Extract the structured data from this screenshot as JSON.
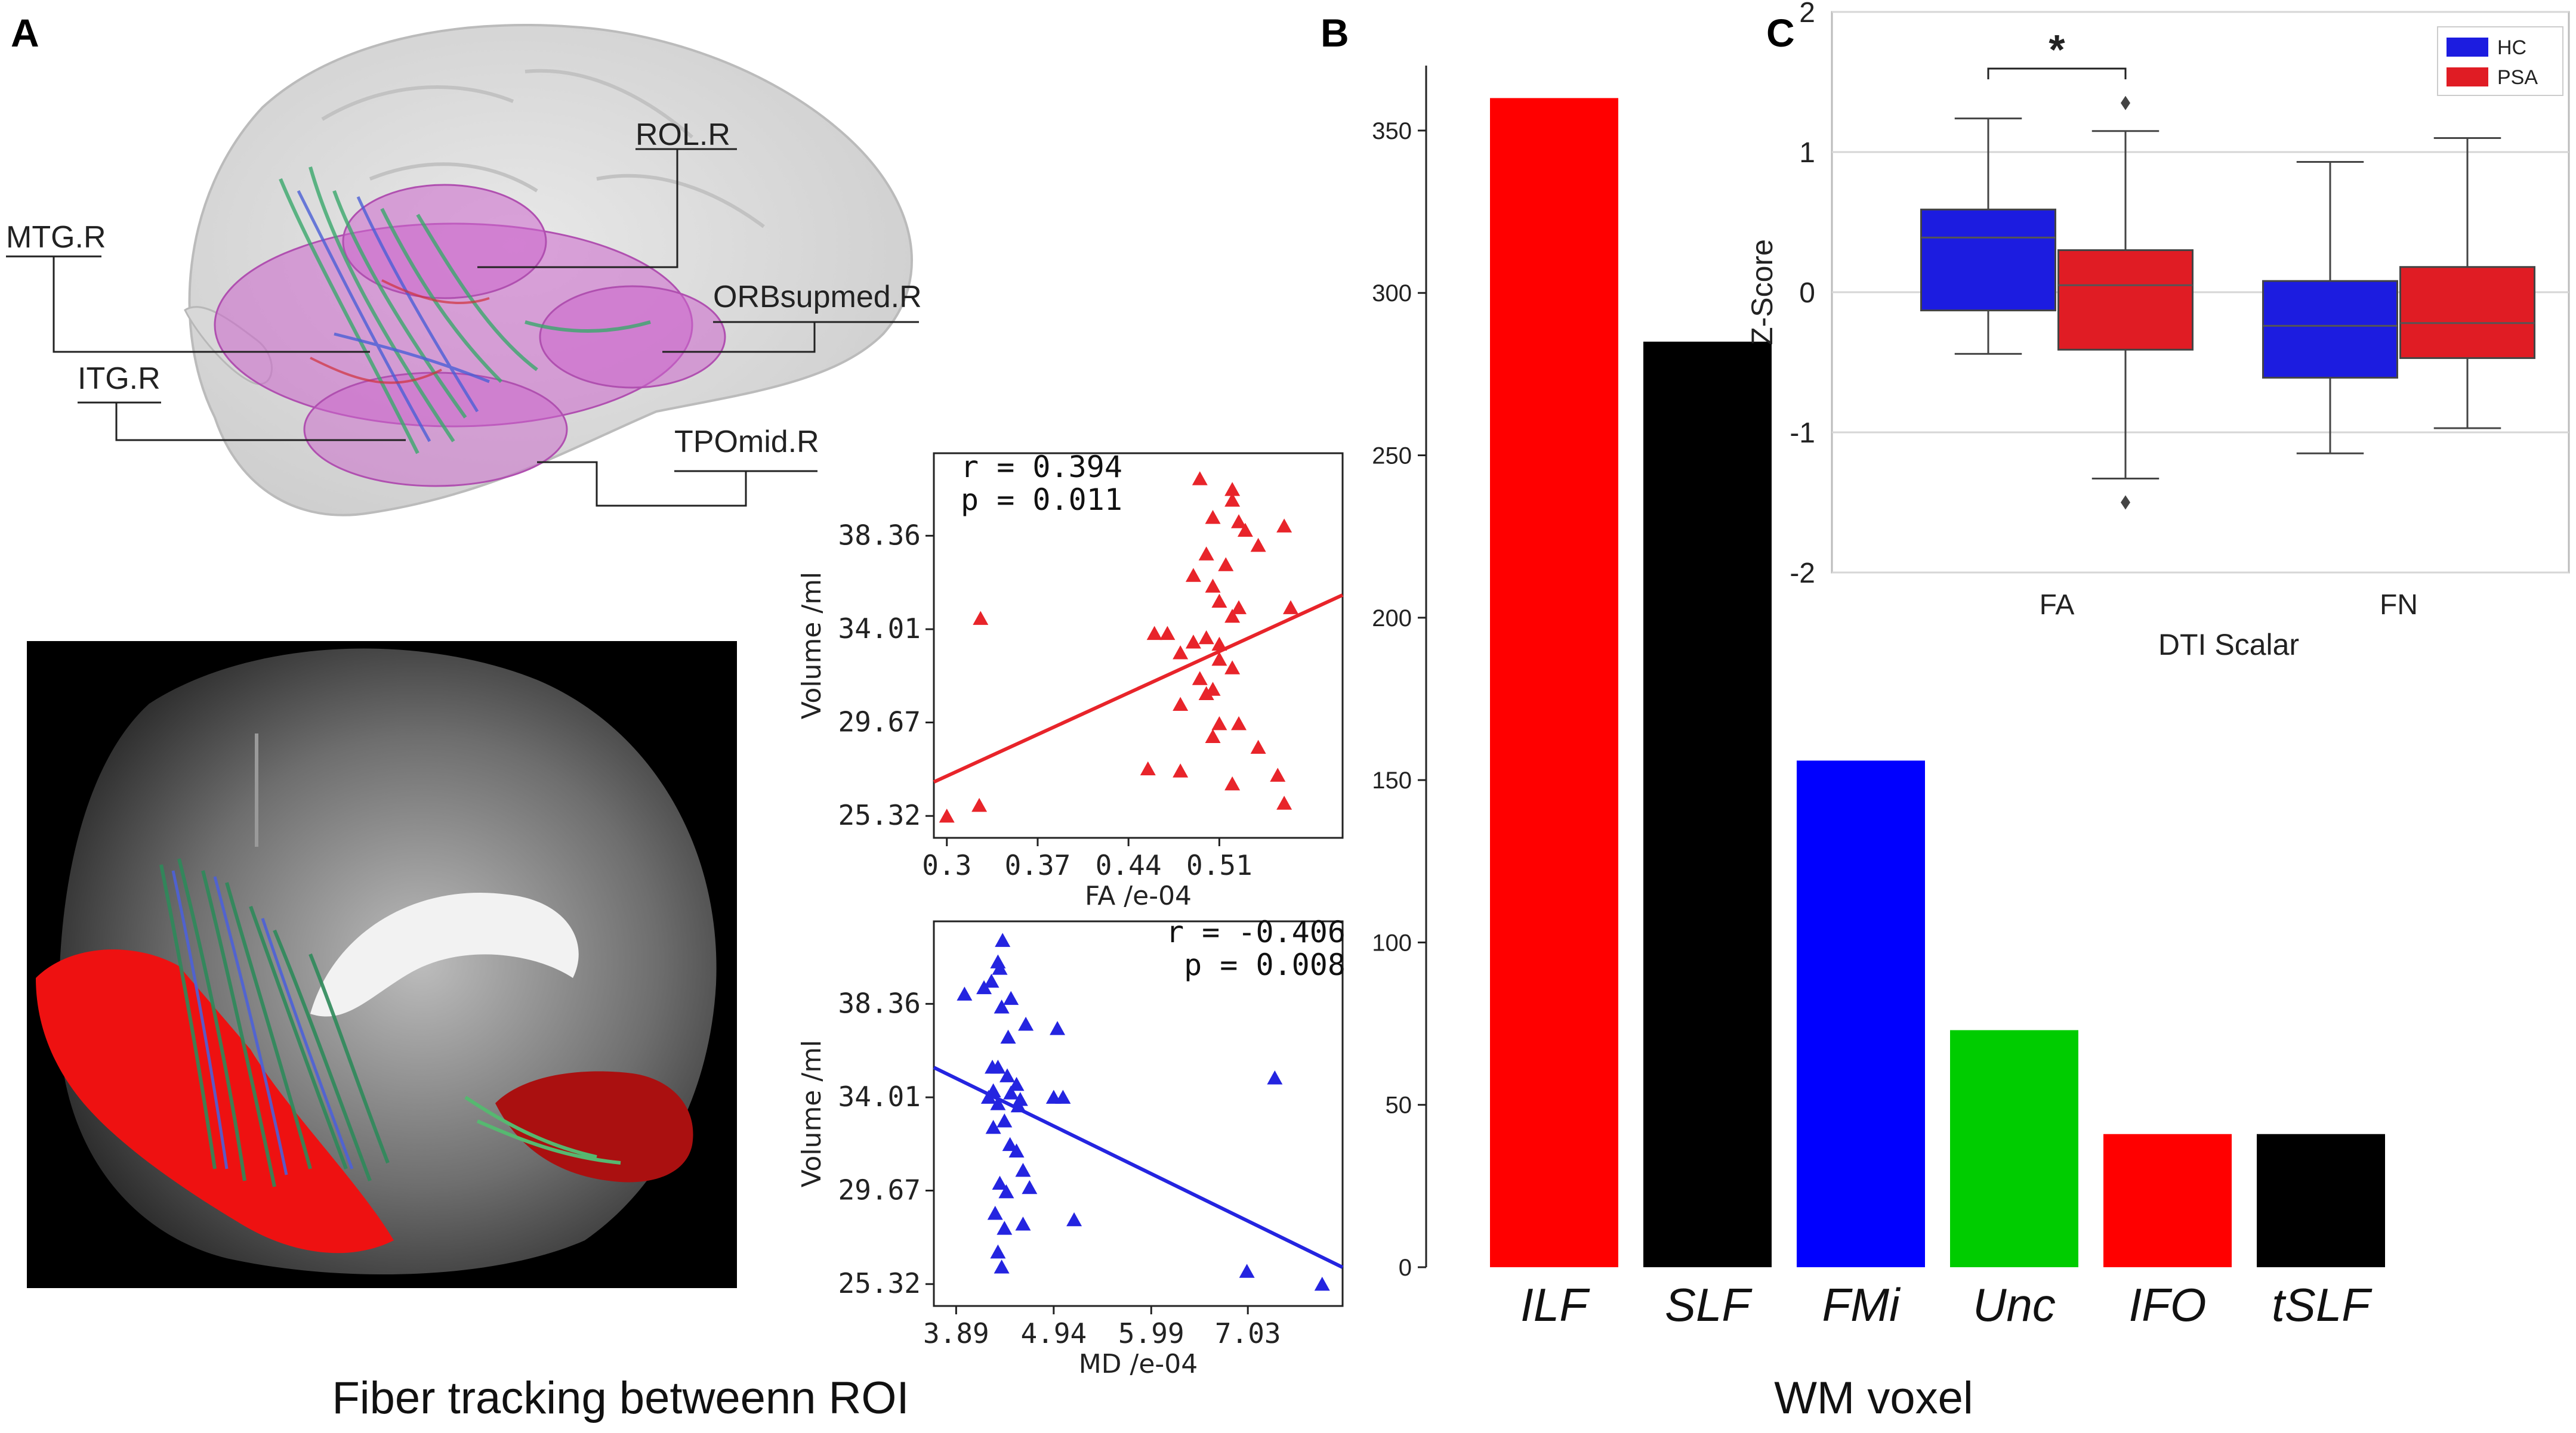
{
  "panels": {
    "a_letter": "A",
    "b_letter": "B",
    "c_letter": "C"
  },
  "panel_a": {
    "caption": "Fiber tracking betweenn ROI",
    "roi_labels": [
      "ROL.R",
      "MTG.R",
      "ORBsupmed.R",
      "ITG.R",
      "TPOmid.R"
    ]
  },
  "panel_b": {
    "caption": "WM voxel"
  },
  "colors": {
    "red": "#ff0000",
    "black": "#000000",
    "blue": "#0000ff",
    "green": "#00cc00",
    "scatter_red": "#e8242a",
    "scatter_blue": "#2424e0",
    "box_blue": "#1c1ce0",
    "box_red": "#e01c24"
  },
  "chart_data": [
    {
      "id": "scatter-fa",
      "type": "scatter",
      "xlabel": "FA /e-04",
      "ylabel": "Volume /ml",
      "xticks": [
        "0.3",
        "0.37",
        "0.44",
        "0.51"
      ],
      "yticks": [
        "25.32",
        "29.67",
        "34.01",
        "38.36"
      ],
      "xlim": [
        0.29,
        0.605
      ],
      "ylim": [
        24.3,
        42.2
      ],
      "stats": {
        "r": "r = 0.394",
        "p": "p = 0.011"
      },
      "fit": {
        "x": [
          0.29,
          0.605
        ],
        "y": [
          26.9,
          35.6
        ]
      },
      "color": "#e8242a",
      "points": [
        [
          0.3,
          25.3
        ],
        [
          0.325,
          25.8
        ],
        [
          0.326,
          34.5
        ],
        [
          0.495,
          41.0
        ],
        [
          0.52,
          40.5
        ],
        [
          0.52,
          40.0
        ],
        [
          0.505,
          39.2
        ],
        [
          0.525,
          39.0
        ],
        [
          0.53,
          38.6
        ],
        [
          0.56,
          38.8
        ],
        [
          0.54,
          37.9
        ],
        [
          0.5,
          37.5
        ],
        [
          0.515,
          37.0
        ],
        [
          0.49,
          36.5
        ],
        [
          0.505,
          36.0
        ],
        [
          0.51,
          35.3
        ],
        [
          0.525,
          35.0
        ],
        [
          0.52,
          34.6
        ],
        [
          0.565,
          35.0
        ],
        [
          0.46,
          33.8
        ],
        [
          0.47,
          33.8
        ],
        [
          0.5,
          33.6
        ],
        [
          0.49,
          33.4
        ],
        [
          0.51,
          33.3
        ],
        [
          0.48,
          32.9
        ],
        [
          0.51,
          32.6
        ],
        [
          0.52,
          32.2
        ],
        [
          0.495,
          31.7
        ],
        [
          0.505,
          31.2
        ],
        [
          0.5,
          31.0
        ],
        [
          0.48,
          30.5
        ],
        [
          0.51,
          29.6
        ],
        [
          0.525,
          29.6
        ],
        [
          0.505,
          29.0
        ],
        [
          0.54,
          28.5
        ],
        [
          0.455,
          27.5
        ],
        [
          0.48,
          27.4
        ],
        [
          0.555,
          27.2
        ],
        [
          0.52,
          26.8
        ],
        [
          0.56,
          25.9
        ]
      ]
    },
    {
      "id": "scatter-md",
      "type": "scatter",
      "xlabel": "MD /e-04",
      "ylabel": "Volume /ml",
      "xticks": [
        "3.89",
        "4.94",
        "5.99",
        "7.03"
      ],
      "yticks": [
        "25.32",
        "29.67",
        "34.01",
        "38.36"
      ],
      "xlim": [
        3.65,
        8.05
      ],
      "ylim": [
        24.3,
        42.2
      ],
      "stats": {
        "r": "r = -0.406",
        "p": "p = 0.008"
      },
      "fit": {
        "x": [
          3.65,
          8.05
        ],
        "y": [
          35.4,
          26.1
        ]
      },
      "color": "#2424e0",
      "points": [
        [
          4.39,
          41.3
        ],
        [
          4.34,
          40.3
        ],
        [
          4.36,
          40.0
        ],
        [
          4.27,
          39.4
        ],
        [
          3.98,
          38.8
        ],
        [
          4.19,
          39.1
        ],
        [
          4.48,
          38.6
        ],
        [
          4.38,
          38.2
        ],
        [
          4.64,
          37.4
        ],
        [
          4.45,
          36.8
        ],
        [
          4.98,
          37.2
        ],
        [
          4.28,
          35.4
        ],
        [
          4.34,
          35.4
        ],
        [
          4.44,
          35.0
        ],
        [
          4.54,
          34.6
        ],
        [
          4.29,
          34.3
        ],
        [
          4.48,
          34.2
        ],
        [
          4.24,
          34.0
        ],
        [
          4.34,
          33.7
        ],
        [
          4.58,
          33.9
        ],
        [
          4.94,
          34.0
        ],
        [
          5.04,
          34.0
        ],
        [
          4.56,
          33.6
        ],
        [
          4.41,
          32.9
        ],
        [
          4.29,
          32.6
        ],
        [
          4.47,
          31.8
        ],
        [
          4.54,
          31.5
        ],
        [
          4.61,
          30.6
        ],
        [
          4.36,
          30.0
        ],
        [
          4.43,
          29.6
        ],
        [
          4.68,
          29.8
        ],
        [
          4.31,
          28.6
        ],
        [
          4.61,
          28.1
        ],
        [
          5.16,
          28.3
        ],
        [
          4.41,
          27.9
        ],
        [
          4.34,
          26.8
        ],
        [
          4.38,
          26.1
        ],
        [
          7.02,
          25.9
        ],
        [
          7.83,
          25.3
        ],
        [
          7.32,
          34.9
        ]
      ]
    },
    {
      "id": "bar-wm",
      "type": "bar",
      "title": "",
      "xlabel": "",
      "ylabel": "",
      "categories": [
        "ILF",
        "SLF",
        "FMi",
        "Unc",
        "IFO",
        "tSLF"
      ],
      "values": [
        360,
        285,
        156,
        73,
        41,
        41
      ],
      "colors": [
        "#ff0000",
        "#000000",
        "#0000ff",
        "#00cc00",
        "#ff0000",
        "#000000"
      ],
      "ylim": [
        0,
        370
      ],
      "yticks": [
        "0",
        "50",
        "100",
        "150",
        "200",
        "250",
        "300",
        "350"
      ]
    },
    {
      "id": "box-dti",
      "type": "box",
      "xlabel": "DTI Scalar",
      "ylabel": "Z-Score",
      "categories": [
        "FA",
        "FN"
      ],
      "yticks": [
        "-2",
        "-1",
        "0",
        "1",
        "2"
      ],
      "ylim": [
        -2,
        2
      ],
      "legend": [
        "HC",
        "PSA"
      ],
      "significance": "*",
      "series": [
        {
          "name": "HC",
          "color": "#1c1ce0",
          "boxes": [
            {
              "whisker_low": -0.44,
              "q1": -0.13,
              "median": 0.39,
              "q3": 0.59,
              "whisker_high": 1.24,
              "outliers": []
            },
            {
              "whisker_low": -1.15,
              "q1": -0.61,
              "median": -0.24,
              "q3": 0.08,
              "whisker_high": 0.93,
              "outliers": []
            }
          ]
        },
        {
          "name": "PSA",
          "color": "#e01c24",
          "boxes": [
            {
              "whisker_low": -1.33,
              "q1": -0.41,
              "median": 0.05,
              "q3": 0.3,
              "whisker_high": 1.15,
              "outliers": [
                1.35,
                -1.5
              ]
            },
            {
              "whisker_low": -0.97,
              "q1": -0.47,
              "median": -0.22,
              "q3": 0.18,
              "whisker_high": 1.1,
              "outliers": []
            }
          ]
        }
      ]
    }
  ]
}
